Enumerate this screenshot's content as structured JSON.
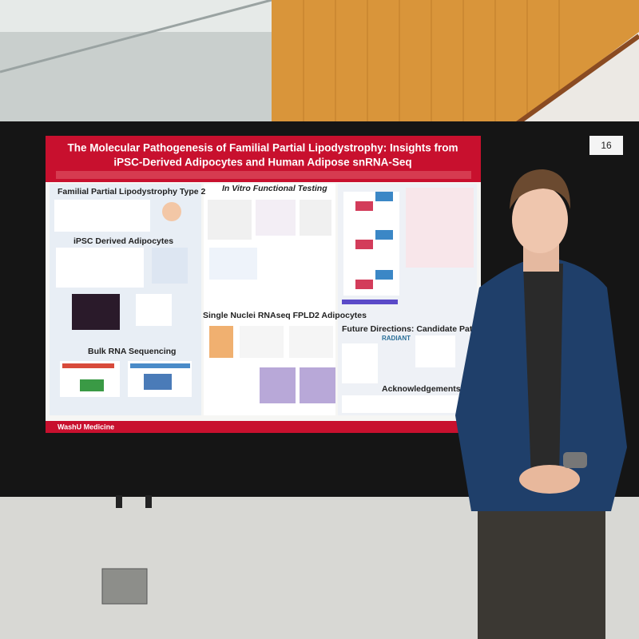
{
  "poster": {
    "title_lines": [
      "The Molecular Pathogenesis of Familial Partial Lipodystrophy: Insights from",
      "iPSC-Derived Adipocytes and Human Adipose snRNA-Seq"
    ],
    "sections": [
      "Familial Partial Lipodystrophy Type 2",
      "In Vitro Functional Testing",
      "iPSC Derived Adipocytes",
      "Single Nuclei RNAseq FPLD2 Adipocytes",
      "Bulk RNA Sequencing",
      "Future Directions: Candidate Patients with Partial Li",
      "Acknowledgements | Funding"
    ],
    "logo": "RADIANT",
    "footer": "WashU Medicine"
  },
  "board_number": "16"
}
